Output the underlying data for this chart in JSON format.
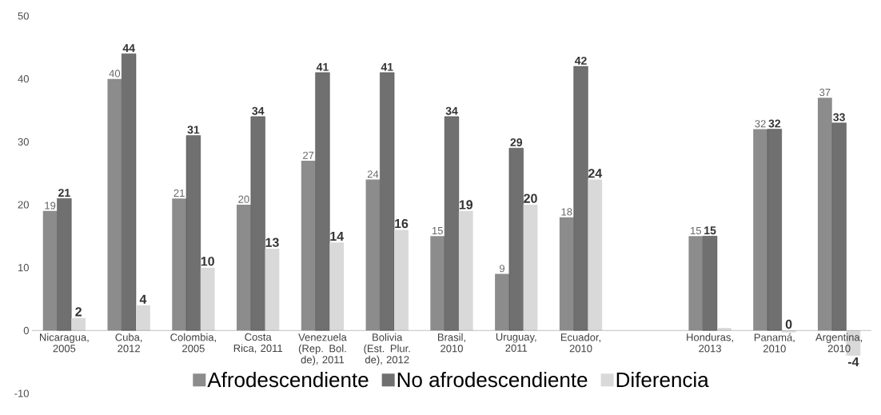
{
  "chart_data": {
    "type": "bar",
    "categories": [
      "Nicaragua, 2005",
      "Cuba, 2012",
      "Colombia, 2005",
      "Costa Rica, 2011",
      "Venezuela (Rep. Bol. de), 2011",
      "Bolivia (Est. Plur. de), 2012",
      "Brasil, 2010",
      "Uruguay, 2011",
      "Ecuador, 2010",
      null,
      "Honduras, 2013",
      "Panamá, 2010",
      "Argentina, 2010"
    ],
    "series": [
      {
        "name": "Afrodescendiente",
        "color": "#8c8c8c",
        "values": [
          19,
          40,
          21,
          20,
          27,
          24,
          15,
          9,
          18,
          null,
          15,
          32,
          37
        ],
        "value_labels": [
          "19",
          "40",
          "21",
          "20",
          "27",
          "24",
          "15",
          "9",
          "18",
          null,
          "15",
          "32",
          "37"
        ]
      },
      {
        "name": "No afrodescendiente",
        "color": "#707070",
        "values": [
          21,
          44,
          31,
          34,
          41,
          41,
          34,
          29,
          42,
          null,
          15,
          32,
          33
        ],
        "value_labels": [
          "21",
          "44",
          "31",
          "34",
          "41",
          "41",
          "34",
          "29",
          "42",
          null,
          "15",
          "32",
          "33"
        ]
      },
      {
        "name": "Diferencia",
        "color": "#d9d9d9",
        "values": [
          2,
          4,
          10,
          13,
          14,
          16,
          19,
          20,
          24,
          null,
          0.4,
          -0.3,
          -4
        ],
        "value_labels": [
          "2",
          "4",
          "10",
          "13",
          "14",
          "16",
          "19",
          "20",
          "24",
          null,
          null,
          "0",
          "-4"
        ]
      }
    ],
    "ylim": [
      -10,
      50
    ],
    "yticks": [
      -10,
      0,
      10,
      20,
      30,
      40,
      50
    ],
    "grid": false,
    "legend": "bottom"
  }
}
